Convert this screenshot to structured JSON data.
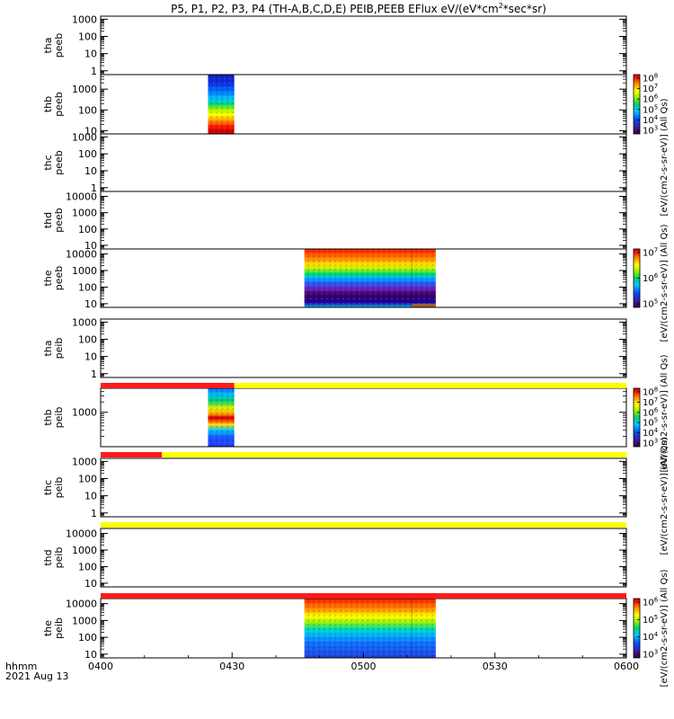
{
  "chart_data": {
    "type": "heatmap",
    "title": "P5, P1, P2, P3, P4 (TH-A,B,C,D,E) PEIB,PEEB EFlux eV/(eV*cm^2*sec*sr)",
    "title_parts": {
      "main": "P5, P1, P2, P3, P4 (TH-A,B,C,D,E) PEIB,PEEB EFlux eV/(eV*cm",
      "sup": "2",
      "tail": "*sec*sr)"
    },
    "xaxis": {
      "label_line1": "hhmm",
      "label_line2": "2021 Aug 13",
      "ticks": [
        "0400",
        "0430",
        "0500",
        "0530",
        "0600"
      ],
      "range_minutes": [
        0,
        120
      ]
    },
    "panels": [
      {
        "probe": "tha",
        "label1": "tha",
        "label2": "peeb",
        "scale": "log",
        "yticks": [
          "1000",
          "100",
          "10",
          "1"
        ],
        "yrange": [
          0.6,
          1500
        ],
        "blocks": []
      },
      {
        "probe": "thb",
        "label1": "thb",
        "label2": "peeb",
        "scale": "log",
        "yticks": [
          "1000",
          "100",
          "10"
        ],
        "yrange": [
          7,
          5000
        ],
        "blocks": [
          {
            "start": 24.5,
            "end": 30.5,
            "kind": "thb_peeb"
          }
        ]
      },
      {
        "probe": "thc",
        "label1": "thc",
        "label2": "peeb",
        "scale": "log",
        "yticks": [
          "1000",
          "100",
          "10",
          "1"
        ],
        "yrange": [
          0.6,
          1500
        ],
        "blocks": []
      },
      {
        "probe": "thd",
        "label1": "thd",
        "label2": "peeb",
        "scale": "log",
        "yticks": [
          "10000",
          "1000",
          "100",
          "10"
        ],
        "yrange": [
          6,
          20000
        ],
        "blocks": []
      },
      {
        "probe": "the",
        "label1": "the",
        "label2": "peeb",
        "scale": "log",
        "yticks": [
          "10000",
          "1000",
          "100",
          "10"
        ],
        "yrange": [
          6,
          20000
        ],
        "blocks": [
          {
            "start": 46.5,
            "end": 76.5,
            "kind": "the_peeb"
          }
        ]
      },
      {
        "probe": "tha",
        "label1": "tha",
        "label2": "peib",
        "scale": "log",
        "yticks": [
          "1000",
          "100",
          "10",
          "1"
        ],
        "yrange": [
          0.6,
          1500
        ],
        "blocks": []
      },
      {
        "probe": "thb",
        "label1": "thb",
        "label2": "peib",
        "scale": "log",
        "yticks": [
          "1000"
        ],
        "yrange": [
          100,
          5000
        ],
        "blocks": [
          {
            "start": 24.5,
            "end": 30.5,
            "kind": "thb_peib"
          }
        ]
      },
      {
        "probe": "thc",
        "label1": "thc",
        "label2": "peib",
        "scale": "log",
        "yticks": [
          "1000",
          "100",
          "10",
          "1"
        ],
        "yrange": [
          0.6,
          1500
        ],
        "blocks": []
      },
      {
        "probe": "thd",
        "label1": "thd",
        "label2": "peib",
        "scale": "log",
        "yticks": [
          "10000",
          "1000",
          "100",
          "10"
        ],
        "yrange": [
          6,
          20000
        ],
        "blocks": []
      },
      {
        "probe": "the",
        "label1": "the",
        "label2": "peib",
        "scale": "log",
        "yticks": [
          "10000",
          "1000",
          "100",
          "10"
        ],
        "yrange": [
          6,
          20000
        ],
        "blocks": [
          {
            "start": 46.5,
            "end": 76.5,
            "kind": "the_peib"
          }
        ]
      }
    ],
    "status_bars": [
      {
        "after_panel": 5,
        "segments": [
          {
            "start": 0,
            "end": 30.5,
            "color": "#ff1a1a"
          },
          {
            "start": 30.5,
            "end": 120,
            "color": "#ffff00"
          }
        ]
      },
      {
        "after_panel": 6,
        "segments": [
          {
            "start": 0,
            "end": 14,
            "color": "#ff1a1a"
          },
          {
            "start": 14,
            "end": 120,
            "color": "#ffff00"
          }
        ]
      },
      {
        "after_panel": 7,
        "segments": [
          {
            "start": 0,
            "end": 120,
            "color": "#ffff00"
          }
        ]
      },
      {
        "after_panel": 8,
        "segments": [
          {
            "start": 0,
            "end": 120,
            "color": "#ff1a1a"
          }
        ]
      }
    ],
    "colorbars": [
      {
        "panel": 1,
        "unit": "[eV/(cm2-s-sr-eV)] (All Qs)",
        "exponents": [
          "8",
          "7",
          "6",
          "5",
          "4",
          "3"
        ]
      },
      {
        "panel": 4,
        "unit": "[eV/(cm2-s-sr-eV)] (All Qs)",
        "exponents": [
          "7",
          "6",
          "5"
        ]
      },
      {
        "panel": 6,
        "unit": "[eV/(cm2-s-sr-eV)] (All Qs)",
        "exponents": [
          "8",
          "7",
          "6",
          "5",
          "4",
          "3"
        ]
      },
      {
        "panel": 9,
        "unit": "[eV/(cm2-s-sr-eV)] (All Qs)",
        "exponents": [
          "6",
          "5",
          "4",
          "3"
        ]
      }
    ],
    "side_texts": [
      {
        "text": "[eV/(cm2-s-sr-eV)] (All Qs)"
      },
      {
        "text": "[eV/(cm2-s-sr-eV)] (All Qs)"
      },
      {
        "text": "[eV/(cm2-s-sr-eV)] (All Qs)"
      },
      {
        "text": "[eV/(cm2-s-sr-eV)] (All Qs)"
      },
      {
        "text": "[eV/(cm2-s-sr-eV)] (All Qs)"
      }
    ],
    "colorbar_base": "10"
  }
}
